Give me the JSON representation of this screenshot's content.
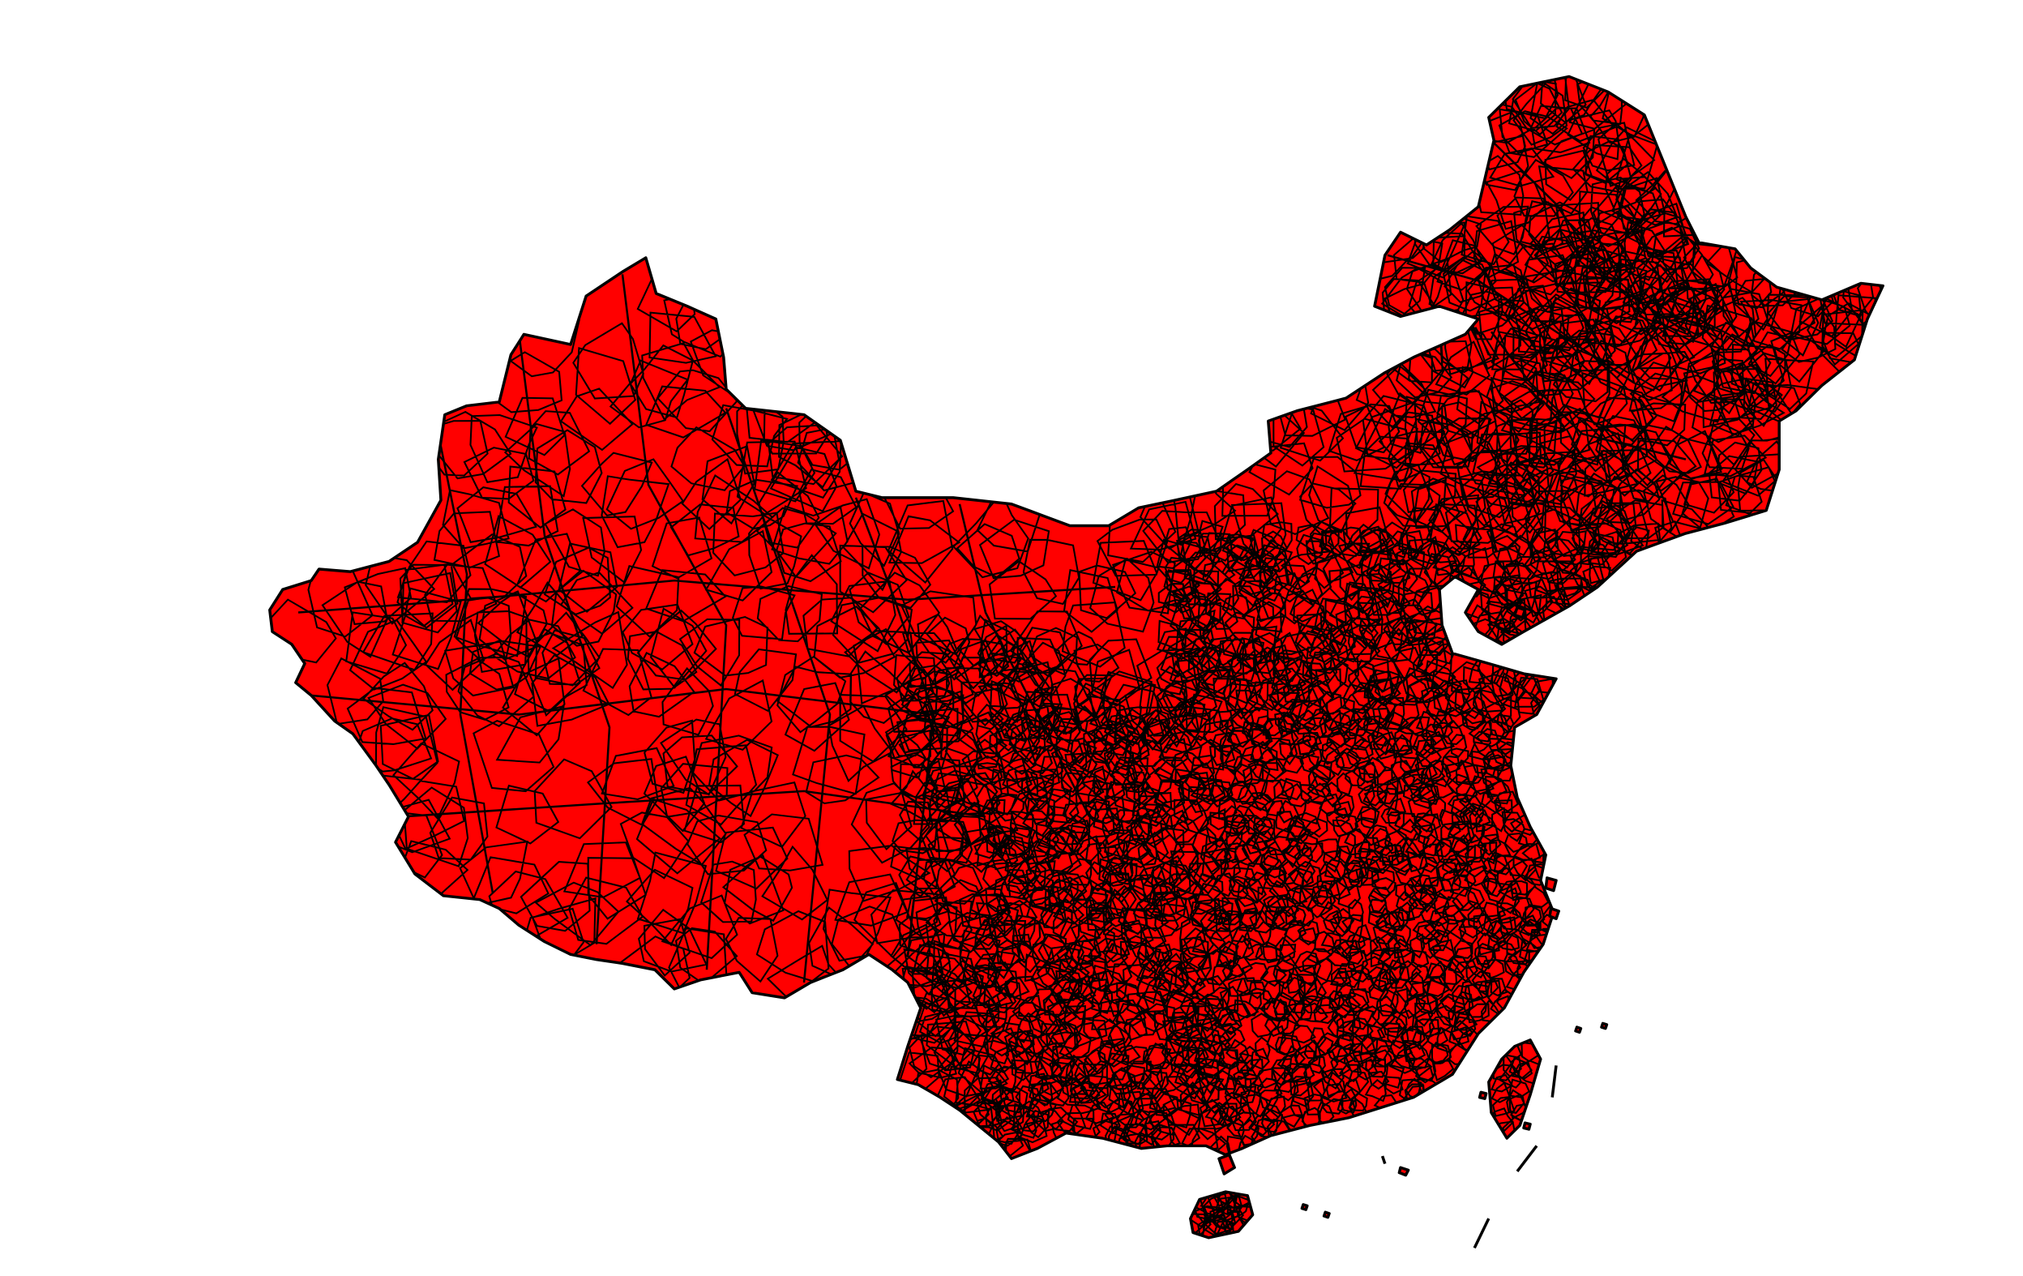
{
  "map": {
    "fill_color": "#ff0000",
    "border_color": "#000000",
    "background_color": "#ffffff",
    "density": {
      "west": 0.08,
      "north": 0.16,
      "northeast": 0.32,
      "east": 0.7,
      "south": 0.85
    }
  }
}
